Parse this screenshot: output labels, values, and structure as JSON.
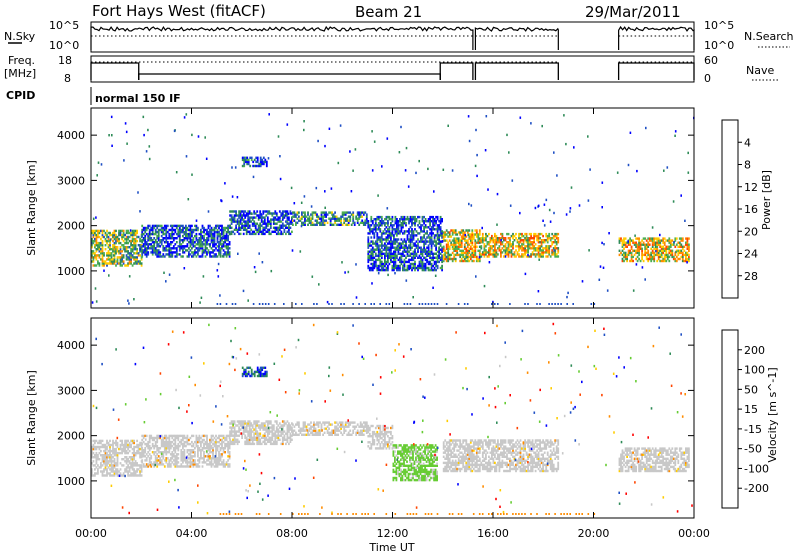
{
  "header": {
    "station": "Fort Hays West (fitACF)",
    "beam": "Beam 21",
    "date": "29/Mar/2011"
  },
  "summary": {
    "nsky_label": "N.Sky",
    "nsearch_label": "N.Search",
    "freq_label": "Freq.",
    "freq_unit": "[MHz]",
    "nave_label": "Nave",
    "cpid_label": "CPID",
    "cpid_value": "normal 150 IF",
    "noise_ticks": [
      "10^5",
      "10^0"
    ],
    "freq_ticks": [
      "18",
      "8"
    ],
    "nave_ticks": [
      "60",
      "0"
    ],
    "colors": {
      "line": "#000000"
    }
  },
  "chart_data": [
    {
      "type": "heatmap",
      "name": "power",
      "xlabel": "",
      "ylabel": "Slant Range [km]",
      "xlim": [
        0,
        24
      ],
      "ylim": [
        180,
        4600
      ],
      "yticks": [
        1000,
        2000,
        3000,
        4000
      ],
      "colorbar": {
        "label": "Power [dB]",
        "ticks": [
          "4",
          "8",
          "12",
          "16",
          "20",
          "24",
          "28"
        ],
        "colors": [
          "#0000ff",
          "#1f4fc4",
          "#2e8b57",
          "#4caf50",
          "#ffcc00",
          "#ff8c00",
          "#ff4500",
          "#ff0000"
        ]
      },
      "bands": [
        {
          "x": [
            0.0,
            2.0
          ],
          "y": [
            1100,
            1900
          ],
          "level": 3
        },
        {
          "x": [
            2.0,
            5.5
          ],
          "y": [
            1300,
            2000
          ],
          "level": 1
        },
        {
          "x": [
            5.5,
            8.0
          ],
          "y": [
            1800,
            2300
          ],
          "level": 1
        },
        {
          "x": [
            8.0,
            11.0
          ],
          "y": [
            2000,
            2300
          ],
          "level": 2
        },
        {
          "x": [
            11.0,
            14.0
          ],
          "y": [
            1000,
            2200
          ],
          "level": 1
        },
        {
          "x": [
            14.0,
            15.5
          ],
          "y": [
            1200,
            1900
          ],
          "level": 4
        },
        {
          "x": [
            15.5,
            18.6
          ],
          "y": [
            1300,
            1800
          ],
          "level": 4
        },
        {
          "x": [
            21.0,
            23.8
          ],
          "y": [
            1200,
            1700
          ],
          "level": 4
        },
        {
          "x": [
            6.0,
            7.0
          ],
          "y": [
            3300,
            3500
          ],
          "level": 1
        }
      ]
    },
    {
      "type": "heatmap",
      "name": "velocity",
      "xlabel": "Time UT",
      "ylabel": "Slant Range [km]",
      "xlim": [
        0,
        24
      ],
      "ylim": [
        180,
        4600
      ],
      "yticks": [
        1000,
        2000,
        3000,
        4000
      ],
      "xticks": [
        "00:00",
        "04:00",
        "08:00",
        "12:00",
        "16:00",
        "20:00",
        "00:00"
      ],
      "colorbar": {
        "label": "Velocity [m s^-1]",
        "ticks": [
          "200",
          "100",
          "50",
          "15",
          "-15",
          "-50",
          "-100",
          "-200"
        ],
        "colors": [
          "#0000ff",
          "#1f4fc4",
          "#2e8b57",
          "#66cc33",
          "#c8c8c8",
          "#ffcc00",
          "#ff8c00",
          "#ff4500",
          "#ff0000"
        ]
      },
      "bands": [
        {
          "x": [
            0.0,
            2.0
          ],
          "y": [
            1100,
            1900
          ],
          "v": 0
        },
        {
          "x": [
            2.0,
            5.5
          ],
          "y": [
            1300,
            2000
          ],
          "v": 0
        },
        {
          "x": [
            5.5,
            8.0
          ],
          "y": [
            1800,
            2300
          ],
          "v": 0
        },
        {
          "x": [
            8.0,
            11.0
          ],
          "y": [
            2000,
            2300
          ],
          "v": 0
        },
        {
          "x": [
            11.0,
            12.0
          ],
          "y": [
            1700,
            2200
          ],
          "v": 0
        },
        {
          "x": [
            12.0,
            13.8
          ],
          "y": [
            1000,
            1800
          ],
          "v": 20
        },
        {
          "x": [
            14.0,
            18.6
          ],
          "y": [
            1200,
            1900
          ],
          "v": 0
        },
        {
          "x": [
            21.0,
            23.8
          ],
          "y": [
            1200,
            1700
          ],
          "v": 0
        },
        {
          "x": [
            6.0,
            7.0
          ],
          "y": [
            3300,
            3500
          ],
          "v": 60
        }
      ]
    }
  ]
}
